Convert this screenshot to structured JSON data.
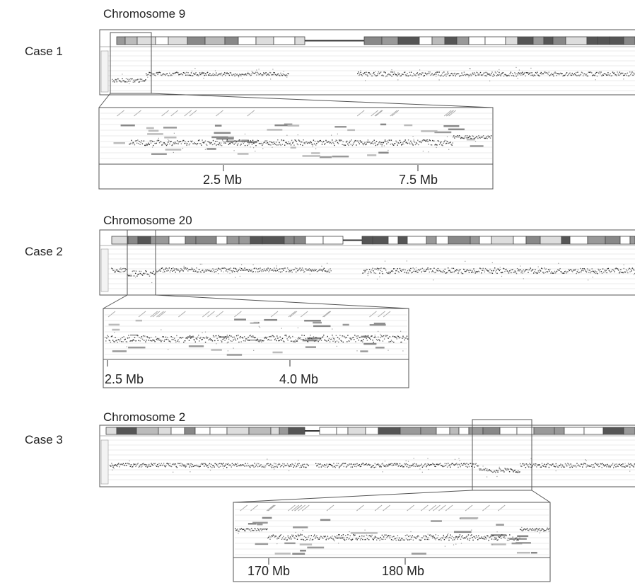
{
  "figure": {
    "cases": [
      {
        "case_label": "Case 1",
        "chromosome_label": "Chromosome 9",
        "zoom_ticks": [
          "2.5 Mb",
          "7.5 Mb"
        ]
      },
      {
        "case_label": "Case 2",
        "chromosome_label": "Chromosome  20",
        "zoom_ticks": [
          "2.5 Mb",
          "4.0 Mb"
        ]
      },
      {
        "case_label": "Case 3",
        "chromosome_label": "Chromosome 2",
        "zoom_ticks": [
          "170 Mb",
          "180 Mb"
        ]
      }
    ]
  }
}
